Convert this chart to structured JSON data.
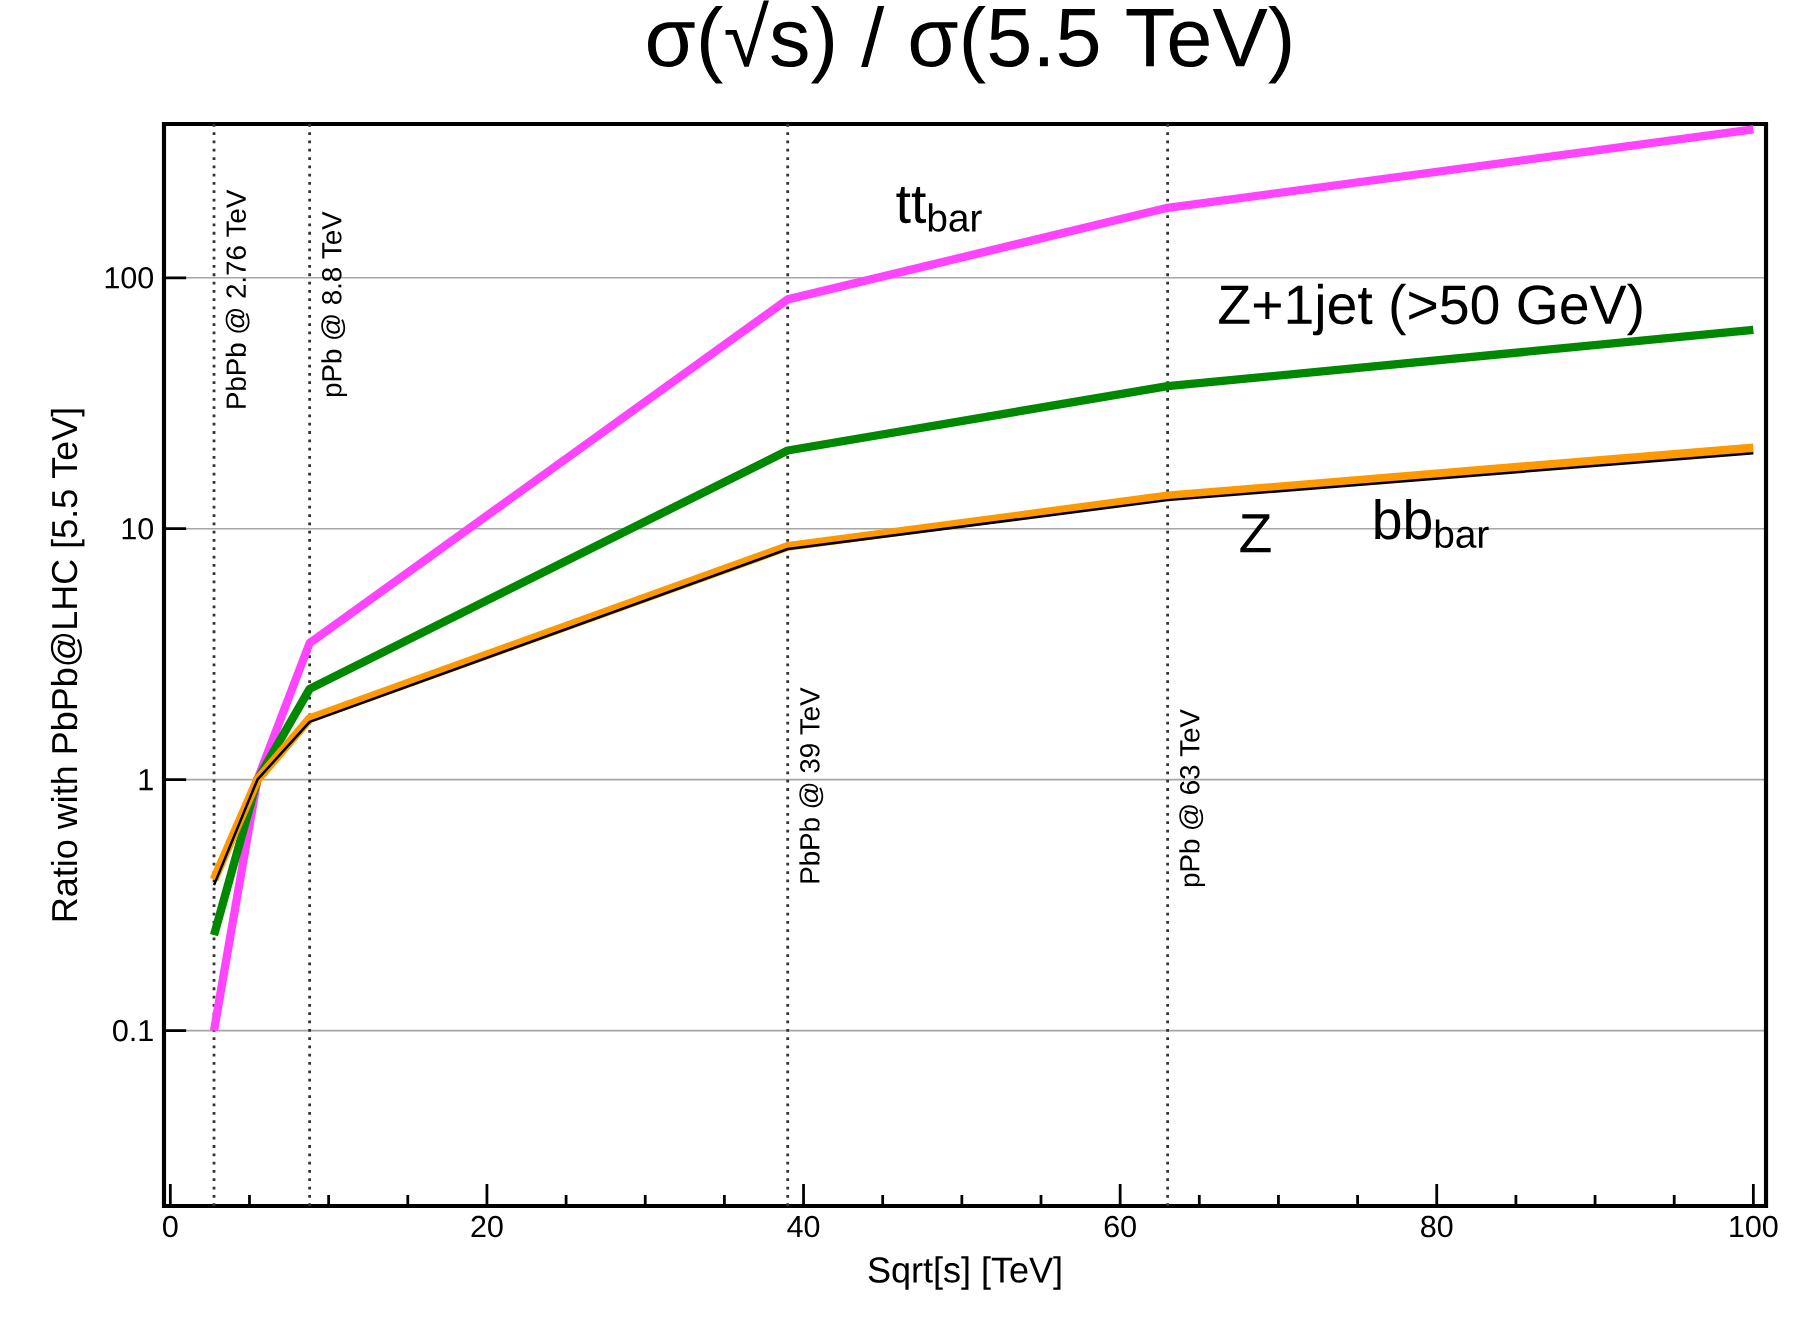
{
  "chart_data": {
    "type": "line",
    "title": "σ(√s) / σ(5.5 TeV)",
    "xlabel": "Sqrt[s] [TeV]",
    "ylabel": "Ratio with PbPb@LHC [5.5 TeV]",
    "log": "y",
    "grid": "y",
    "xlim": [
      -0.4,
      100.8
    ],
    "xticks": [
      0,
      20,
      40,
      60,
      80,
      100
    ],
    "ylim": [
      0.02,
      410
    ],
    "yticks": [
      0.1,
      1,
      10,
      100
    ],
    "x": [
      2.76,
      5.5,
      8.8,
      39,
      63,
      100
    ],
    "series": [
      {
        "name": "tt$_{bar}$",
        "color": "#ff44ff",
        "values": [
          0.1,
          1,
          3.5,
          82,
          190,
          390
        ]
      },
      {
        "name": "Z+1jet (>50 GeV)",
        "color": "#008800",
        "values": [
          0.24,
          1,
          2.3,
          20.5,
          37,
          62
        ]
      },
      {
        "name": "Z",
        "color": "#ff9900",
        "values": [
          0.4,
          1,
          1.75,
          8.5,
          13.5,
          21
        ]
      },
      {
        "name": "bb$_{bar}$",
        "color": "#000000",
        "values": [
          0.38,
          1,
          1.7,
          8.3,
          13,
          20
        ]
      }
    ],
    "ref_lines": [
      {
        "axis": "x",
        "value": 2.76,
        "label": "PbPb @ 2.76 TeV",
        "color": "#333333",
        "line_style": "dotted"
      },
      {
        "axis": "x",
        "value": 8.8,
        "label": "pPb @ 8.8 TeV",
        "color": "#333333",
        "line_style": "dotted"
      },
      {
        "axis": "x",
        "value": 39,
        "label": "PbPb @ 39 TeV",
        "color": "#333333",
        "line_style": "dotted"
      },
      {
        "axis": "x",
        "value": 63,
        "label": "pPb @ 63 TeV",
        "color": "#333333",
        "line_style": "dotted"
      }
    ]
  }
}
